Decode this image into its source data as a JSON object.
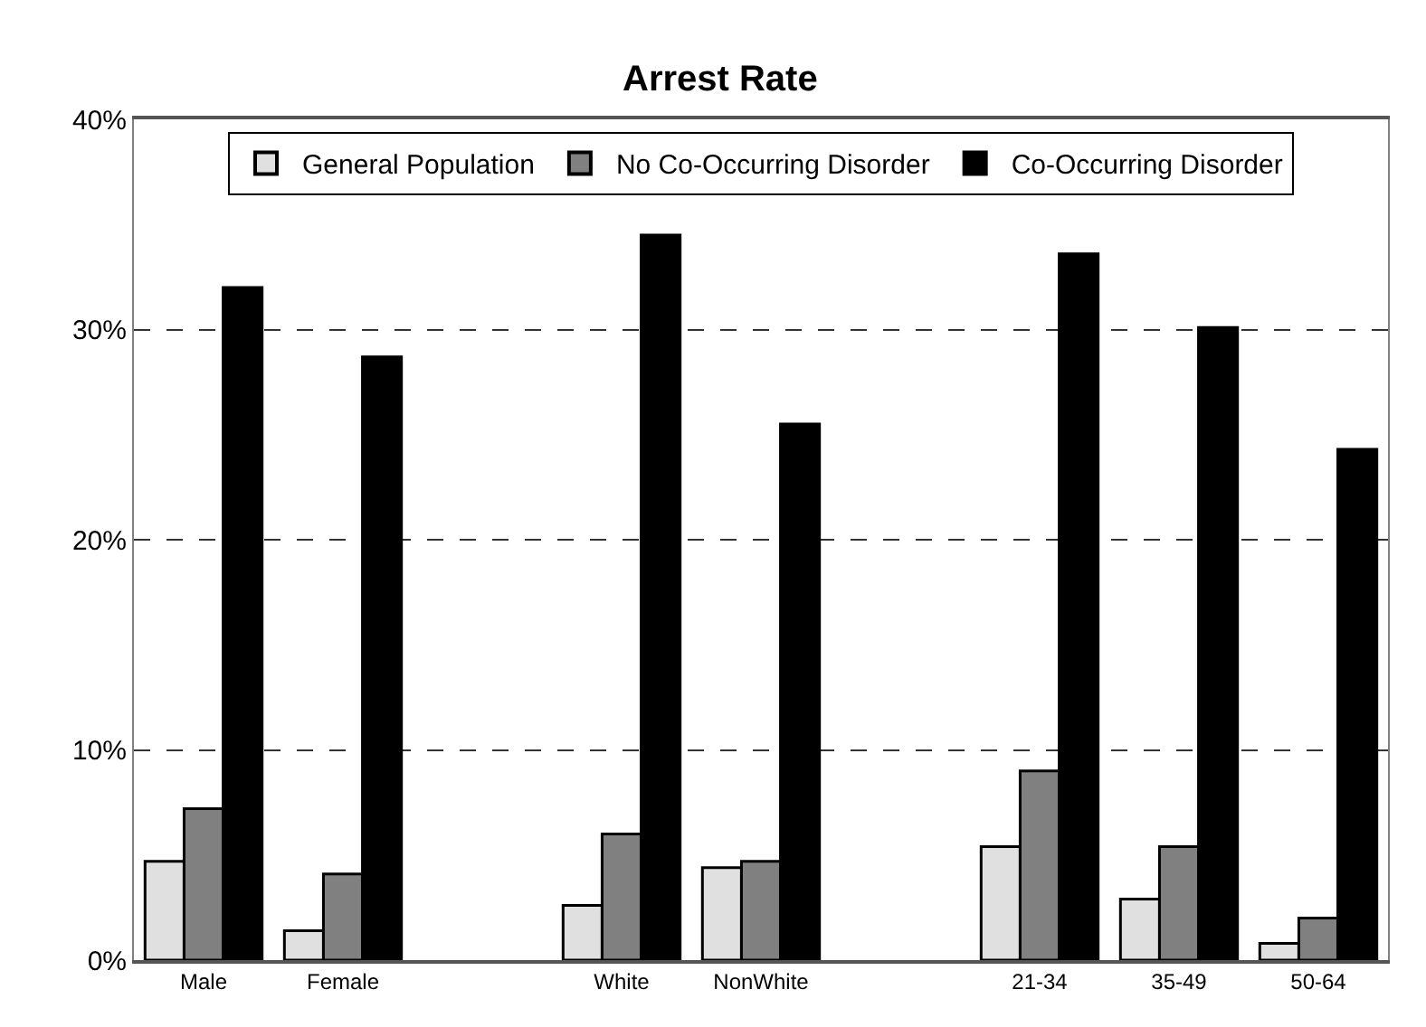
{
  "chart_data": {
    "type": "bar",
    "title": "Arrest Rate",
    "categories": [
      "Male",
      "Female",
      null,
      "White",
      "NonWhite",
      null,
      "21-34",
      "35-49",
      "50-64"
    ],
    "series": [
      {
        "name": "General Population",
        "color": "#e0e0e0",
        "values": [
          4.7,
          1.4,
          null,
          2.6,
          4.4,
          null,
          5.4,
          2.9,
          0.8
        ]
      },
      {
        "name": "No Co-Occurring Disorder",
        "color": "#808080",
        "values": [
          7.2,
          4.1,
          null,
          6.0,
          4.7,
          null,
          9.0,
          5.4,
          2.0
        ]
      },
      {
        "name": "Co-Occurring Disorder",
        "color": "#000000",
        "values": [
          32.0,
          28.7,
          null,
          34.5,
          25.5,
          null,
          33.6,
          30.1,
          24.3
        ]
      }
    ],
    "ylim": [
      0,
      40
    ],
    "yticks": [
      {
        "value": 0,
        "label": "0%"
      },
      {
        "value": 10,
        "label": "10%"
      },
      {
        "value": 20,
        "label": "20%"
      },
      {
        "value": 30,
        "label": "30%"
      },
      {
        "value": 40,
        "label": "40%"
      }
    ],
    "grid": "y",
    "legend": "top"
  }
}
